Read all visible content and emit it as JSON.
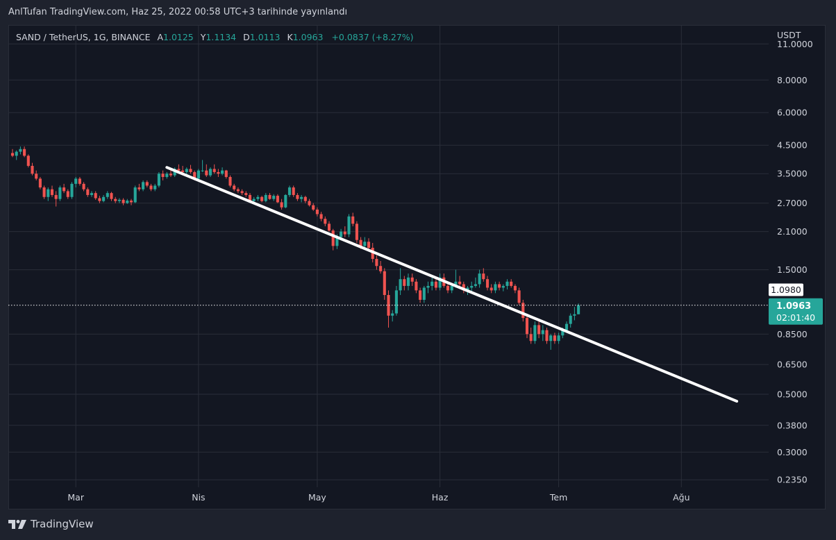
{
  "header": {
    "title": "AnlTufan TradingView.com, Haz 25, 2022 00:58 UTC+3 tarihinde yayınlandı"
  },
  "legend": {
    "symbol": "SAND / TetherUS, 1G, BINANCE",
    "open_label": "A",
    "open": "1.0125",
    "high_label": "Y",
    "high": "1.1134",
    "low_label": "D",
    "low": "1.0113",
    "close_label": "K",
    "close": "1.0963",
    "change": "+0.0837 (+8.27%)"
  },
  "footer": {
    "brand": "TradingView"
  },
  "colors": {
    "up": "#26a69a",
    "down": "#ef5350",
    "bg": "#131722",
    "grid": "#2a2e39",
    "text": "#d1d4dc",
    "trendline": "#ffffff"
  },
  "chart_data": {
    "type": "candlestick",
    "symbol": "SAND / TetherUS",
    "interval": "1G",
    "exchange": "BINANCE",
    "y_scale": "log",
    "y_unit": "USDT",
    "ylim": [
      0.22,
      13.0
    ],
    "y_ticks": [
      "11.0000",
      "8.0000",
      "6.0000",
      "4.5000",
      "3.5000",
      "2.7000",
      "2.1000",
      "1.5000",
      "0.8500",
      "0.6500",
      "0.5000",
      "0.3800",
      "0.3000",
      "0.2350"
    ],
    "x_ticks": [
      "Mar",
      "Nis",
      "May",
      "Haz",
      "Tem",
      "Ağu"
    ],
    "x_start_date": "2022-02-13",
    "x_end_date": "2022-08-22",
    "last_price": {
      "value": 1.0963,
      "label": "1.0963",
      "countdown": "02:01:40"
    },
    "marker_price": {
      "value": 1.098,
      "label": "1.0980"
    },
    "trendline": {
      "start": [
        "2022-03-24",
        3.7
      ],
      "end": [
        "2022-08-15",
        0.47
      ]
    },
    "candles": [
      [
        "2022-02-13",
        4.2,
        4.35,
        4.05,
        4.1
      ],
      [
        "2022-02-14",
        4.1,
        4.3,
        3.95,
        4.25
      ],
      [
        "2022-02-15",
        4.25,
        4.45,
        4.15,
        4.35
      ],
      [
        "2022-02-16",
        4.35,
        4.45,
        4.05,
        4.1
      ],
      [
        "2022-02-17",
        4.1,
        4.15,
        3.7,
        3.75
      ],
      [
        "2022-02-18",
        3.75,
        3.85,
        3.45,
        3.5
      ],
      [
        "2022-02-19",
        3.5,
        3.6,
        3.3,
        3.35
      ],
      [
        "2022-02-20",
        3.35,
        3.4,
        3.05,
        3.1
      ],
      [
        "2022-02-21",
        3.1,
        3.15,
        2.8,
        2.85
      ],
      [
        "2022-02-22",
        2.85,
        3.1,
        2.75,
        3.05
      ],
      [
        "2022-02-23",
        3.05,
        3.15,
        2.85,
        2.9
      ],
      [
        "2022-02-24",
        2.9,
        3.0,
        2.62,
        2.8
      ],
      [
        "2022-02-25",
        2.8,
        3.15,
        2.75,
        3.1
      ],
      [
        "2022-02-26",
        3.1,
        3.2,
        2.95,
        3.0
      ],
      [
        "2022-02-27",
        3.0,
        3.05,
        2.8,
        2.85
      ],
      [
        "2022-02-28",
        2.85,
        3.25,
        2.8,
        3.2
      ],
      [
        "2022-03-01",
        3.2,
        3.4,
        3.1,
        3.35
      ],
      [
        "2022-03-02",
        3.35,
        3.4,
        3.15,
        3.2
      ],
      [
        "2022-03-03",
        3.2,
        3.25,
        3.0,
        3.05
      ],
      [
        "2022-03-04",
        3.05,
        3.1,
        2.85,
        2.9
      ],
      [
        "2022-03-05",
        2.9,
        3.0,
        2.85,
        2.95
      ],
      [
        "2022-03-06",
        2.95,
        3.0,
        2.78,
        2.82
      ],
      [
        "2022-03-07",
        2.82,
        2.88,
        2.7,
        2.75
      ],
      [
        "2022-03-08",
        2.75,
        2.9,
        2.72,
        2.85
      ],
      [
        "2022-03-09",
        2.85,
        3.0,
        2.8,
        2.95
      ],
      [
        "2022-03-10",
        2.95,
        2.98,
        2.75,
        2.8
      ],
      [
        "2022-03-11",
        2.8,
        2.85,
        2.7,
        2.75
      ],
      [
        "2022-03-12",
        2.75,
        2.82,
        2.7,
        2.78
      ],
      [
        "2022-03-13",
        2.78,
        2.82,
        2.65,
        2.7
      ],
      [
        "2022-03-14",
        2.7,
        2.8,
        2.68,
        2.76
      ],
      [
        "2022-03-15",
        2.76,
        2.8,
        2.65,
        2.72
      ],
      [
        "2022-03-16",
        2.72,
        3.15,
        2.7,
        3.1
      ],
      [
        "2022-03-17",
        3.1,
        3.2,
        3.0,
        3.05
      ],
      [
        "2022-03-18",
        3.05,
        3.3,
        3.0,
        3.25
      ],
      [
        "2022-03-19",
        3.25,
        3.3,
        3.1,
        3.15
      ],
      [
        "2022-03-20",
        3.15,
        3.2,
        3.0,
        3.05
      ],
      [
        "2022-03-21",
        3.05,
        3.2,
        3.0,
        3.15
      ],
      [
        "2022-03-22",
        3.15,
        3.55,
        3.1,
        3.5
      ],
      [
        "2022-03-23",
        3.5,
        3.6,
        3.3,
        3.4
      ],
      [
        "2022-03-24",
        3.4,
        3.55,
        3.35,
        3.5
      ],
      [
        "2022-03-25",
        3.5,
        3.65,
        3.4,
        3.45
      ],
      [
        "2022-03-26",
        3.45,
        3.7,
        3.4,
        3.65
      ],
      [
        "2022-03-27",
        3.65,
        3.8,
        3.55,
        3.6
      ],
      [
        "2022-03-28",
        3.6,
        3.75,
        3.5,
        3.55
      ],
      [
        "2022-03-29",
        3.55,
        3.7,
        3.45,
        3.65
      ],
      [
        "2022-03-30",
        3.65,
        3.78,
        3.5,
        3.55
      ],
      [
        "2022-03-31",
        3.55,
        3.6,
        3.3,
        3.35
      ],
      [
        "2022-04-01",
        3.35,
        3.65,
        3.3,
        3.6
      ],
      [
        "2022-04-02",
        3.6,
        3.95,
        3.55,
        3.6
      ],
      [
        "2022-04-03",
        3.6,
        3.8,
        3.4,
        3.45
      ],
      [
        "2022-04-04",
        3.45,
        3.7,
        3.4,
        3.65
      ],
      [
        "2022-04-05",
        3.65,
        3.8,
        3.5,
        3.55
      ],
      [
        "2022-04-06",
        3.55,
        3.65,
        3.4,
        3.5
      ],
      [
        "2022-04-07",
        3.5,
        3.7,
        3.45,
        3.6
      ],
      [
        "2022-04-08",
        3.6,
        3.62,
        3.35,
        3.4
      ],
      [
        "2022-04-09",
        3.4,
        3.45,
        3.1,
        3.15
      ],
      [
        "2022-04-10",
        3.15,
        3.2,
        3.0,
        3.05
      ],
      [
        "2022-04-11",
        3.05,
        3.1,
        2.95,
        3.0
      ],
      [
        "2022-04-12",
        3.0,
        3.05,
        2.9,
        2.95
      ],
      [
        "2022-04-13",
        2.95,
        3.0,
        2.85,
        2.9
      ],
      [
        "2022-04-14",
        2.9,
        2.95,
        2.72,
        2.75
      ],
      [
        "2022-04-15",
        2.75,
        2.85,
        2.7,
        2.8
      ],
      [
        "2022-04-16",
        2.8,
        2.9,
        2.75,
        2.85
      ],
      [
        "2022-04-17",
        2.85,
        2.88,
        2.72,
        2.75
      ],
      [
        "2022-04-18",
        2.75,
        2.95,
        2.72,
        2.9
      ],
      [
        "2022-04-19",
        2.9,
        2.95,
        2.78,
        2.8
      ],
      [
        "2022-04-20",
        2.8,
        2.92,
        2.75,
        2.88
      ],
      [
        "2022-04-21",
        2.88,
        2.92,
        2.7,
        2.72
      ],
      [
        "2022-04-22",
        2.72,
        2.8,
        2.55,
        2.6
      ],
      [
        "2022-04-23",
        2.6,
        2.92,
        2.58,
        2.9
      ],
      [
        "2022-04-24",
        2.9,
        3.15,
        2.85,
        3.1
      ],
      [
        "2022-04-25",
        3.1,
        3.15,
        2.85,
        2.9
      ],
      [
        "2022-04-26",
        2.9,
        2.95,
        2.75,
        2.8
      ],
      [
        "2022-04-27",
        2.8,
        2.9,
        2.72,
        2.85
      ],
      [
        "2022-04-28",
        2.85,
        2.88,
        2.7,
        2.75
      ],
      [
        "2022-04-29",
        2.75,
        2.8,
        2.62,
        2.65
      ],
      [
        "2022-04-30",
        2.65,
        2.7,
        2.52,
        2.55
      ],
      [
        "2022-05-01",
        2.55,
        2.6,
        2.4,
        2.45
      ],
      [
        "2022-05-02",
        2.45,
        2.5,
        2.3,
        2.35
      ],
      [
        "2022-05-03",
        2.35,
        2.4,
        2.2,
        2.25
      ],
      [
        "2022-05-04",
        2.25,
        2.3,
        2.1,
        2.12
      ],
      [
        "2022-05-05",
        2.12,
        2.15,
        1.78,
        1.85
      ],
      [
        "2022-05-06",
        1.85,
        2.05,
        1.8,
        2.0
      ],
      [
        "2022-05-07",
        2.0,
        2.15,
        1.95,
        2.1
      ],
      [
        "2022-05-08",
        2.1,
        2.2,
        2.0,
        2.05
      ],
      [
        "2022-05-09",
        2.05,
        2.45,
        2.0,
        2.4
      ],
      [
        "2022-05-10",
        2.4,
        2.48,
        2.2,
        2.25
      ],
      [
        "2022-05-11",
        2.25,
        2.3,
        1.9,
        1.95
      ],
      [
        "2022-05-12",
        1.95,
        2.0,
        1.8,
        1.85
      ],
      [
        "2022-05-13",
        1.85,
        2.0,
        1.82,
        1.92
      ],
      [
        "2022-05-14",
        1.92,
        1.98,
        1.8,
        1.82
      ],
      [
        "2022-05-15",
        1.82,
        1.9,
        1.6,
        1.65
      ],
      [
        "2022-05-16",
        1.65,
        1.7,
        1.5,
        1.55
      ],
      [
        "2022-05-17",
        1.55,
        1.62,
        1.45,
        1.48
      ],
      [
        "2022-05-18",
        1.48,
        1.52,
        1.15,
        1.2
      ],
      [
        "2022-05-19",
        1.2,
        1.25,
        0.9,
        1.0
      ],
      [
        "2022-05-20",
        1.0,
        1.05,
        0.95,
        1.02
      ],
      [
        "2022-05-21",
        1.02,
        1.3,
        1.0,
        1.25
      ],
      [
        "2022-05-22",
        1.25,
        1.52,
        1.2,
        1.38
      ],
      [
        "2022-05-23",
        1.38,
        1.42,
        1.25,
        1.3
      ],
      [
        "2022-05-24",
        1.3,
        1.45,
        1.25,
        1.4
      ],
      [
        "2022-05-25",
        1.4,
        1.45,
        1.3,
        1.35
      ],
      [
        "2022-05-26",
        1.35,
        1.38,
        1.22,
        1.25
      ],
      [
        "2022-05-27",
        1.25,
        1.28,
        1.12,
        1.15
      ],
      [
        "2022-05-28",
        1.15,
        1.3,
        1.12,
        1.28
      ],
      [
        "2022-05-29",
        1.28,
        1.35,
        1.22,
        1.3
      ],
      [
        "2022-05-30",
        1.3,
        1.4,
        1.25,
        1.35
      ],
      [
        "2022-05-31",
        1.35,
        1.4,
        1.25,
        1.28
      ],
      [
        "2022-06-01",
        1.28,
        1.45,
        1.25,
        1.4
      ],
      [
        "2022-06-02",
        1.4,
        1.45,
        1.28,
        1.3
      ],
      [
        "2022-06-03",
        1.3,
        1.35,
        1.22,
        1.25
      ],
      [
        "2022-06-04",
        1.25,
        1.32,
        1.22,
        1.3
      ],
      [
        "2022-06-05",
        1.3,
        1.5,
        1.28,
        1.35
      ],
      [
        "2022-06-06",
        1.35,
        1.42,
        1.28,
        1.32
      ],
      [
        "2022-06-07",
        1.32,
        1.35,
        1.22,
        1.25
      ],
      [
        "2022-06-08",
        1.25,
        1.3,
        1.2,
        1.28
      ],
      [
        "2022-06-09",
        1.28,
        1.35,
        1.24,
        1.3
      ],
      [
        "2022-06-10",
        1.3,
        1.4,
        1.28,
        1.32
      ],
      [
        "2022-06-11",
        1.32,
        1.5,
        1.28,
        1.45
      ],
      [
        "2022-06-12",
        1.45,
        1.52,
        1.35,
        1.38
      ],
      [
        "2022-06-13",
        1.38,
        1.42,
        1.25,
        1.28
      ],
      [
        "2022-06-14",
        1.28,
        1.32,
        1.22,
        1.25
      ],
      [
        "2022-06-15",
        1.25,
        1.35,
        1.22,
        1.32
      ],
      [
        "2022-06-16",
        1.32,
        1.35,
        1.25,
        1.28
      ],
      [
        "2022-06-17",
        1.28,
        1.32,
        1.24,
        1.3
      ],
      [
        "2022-06-18",
        1.3,
        1.38,
        1.26,
        1.35
      ],
      [
        "2022-06-19",
        1.35,
        1.38,
        1.28,
        1.3
      ],
      [
        "2022-06-20",
        1.3,
        1.32,
        1.22,
        1.25
      ],
      [
        "2022-06-21",
        1.25,
        1.28,
        1.1,
        1.12
      ],
      [
        "2022-06-22",
        1.12,
        1.15,
        0.95,
        0.98
      ],
      [
        "2022-06-23",
        0.98,
        1.0,
        0.82,
        0.85
      ],
      [
        "2022-06-24",
        0.85,
        0.9,
        0.78,
        0.8
      ],
      [
        "2022-06-25",
        0.8,
        0.95,
        0.78,
        0.92
      ],
      [
        "2022-06-26",
        0.92,
        0.95,
        0.82,
        0.85
      ],
      [
        "2022-06-27",
        0.85,
        0.92,
        0.8,
        0.88
      ],
      [
        "2022-06-28",
        0.88,
        0.9,
        0.78,
        0.8
      ],
      [
        "2022-06-29",
        0.8,
        0.85,
        0.74,
        0.84
      ],
      [
        "2022-06-30",
        0.84,
        0.86,
        0.78,
        0.8
      ],
      [
        "2022-07-01",
        0.8,
        0.86,
        0.78,
        0.84
      ],
      [
        "2022-07-02",
        0.84,
        0.9,
        0.82,
        0.88
      ],
      [
        "2022-07-03",
        0.88,
        0.95,
        0.86,
        0.93
      ],
      [
        "2022-07-04",
        0.93,
        1.02,
        0.9,
        1.0
      ],
      [
        "2022-07-05",
        1.0,
        1.08,
        0.96,
        1.0125
      ],
      [
        "2022-07-06",
        1.0125,
        1.1134,
        1.0113,
        1.0963
      ]
    ]
  }
}
